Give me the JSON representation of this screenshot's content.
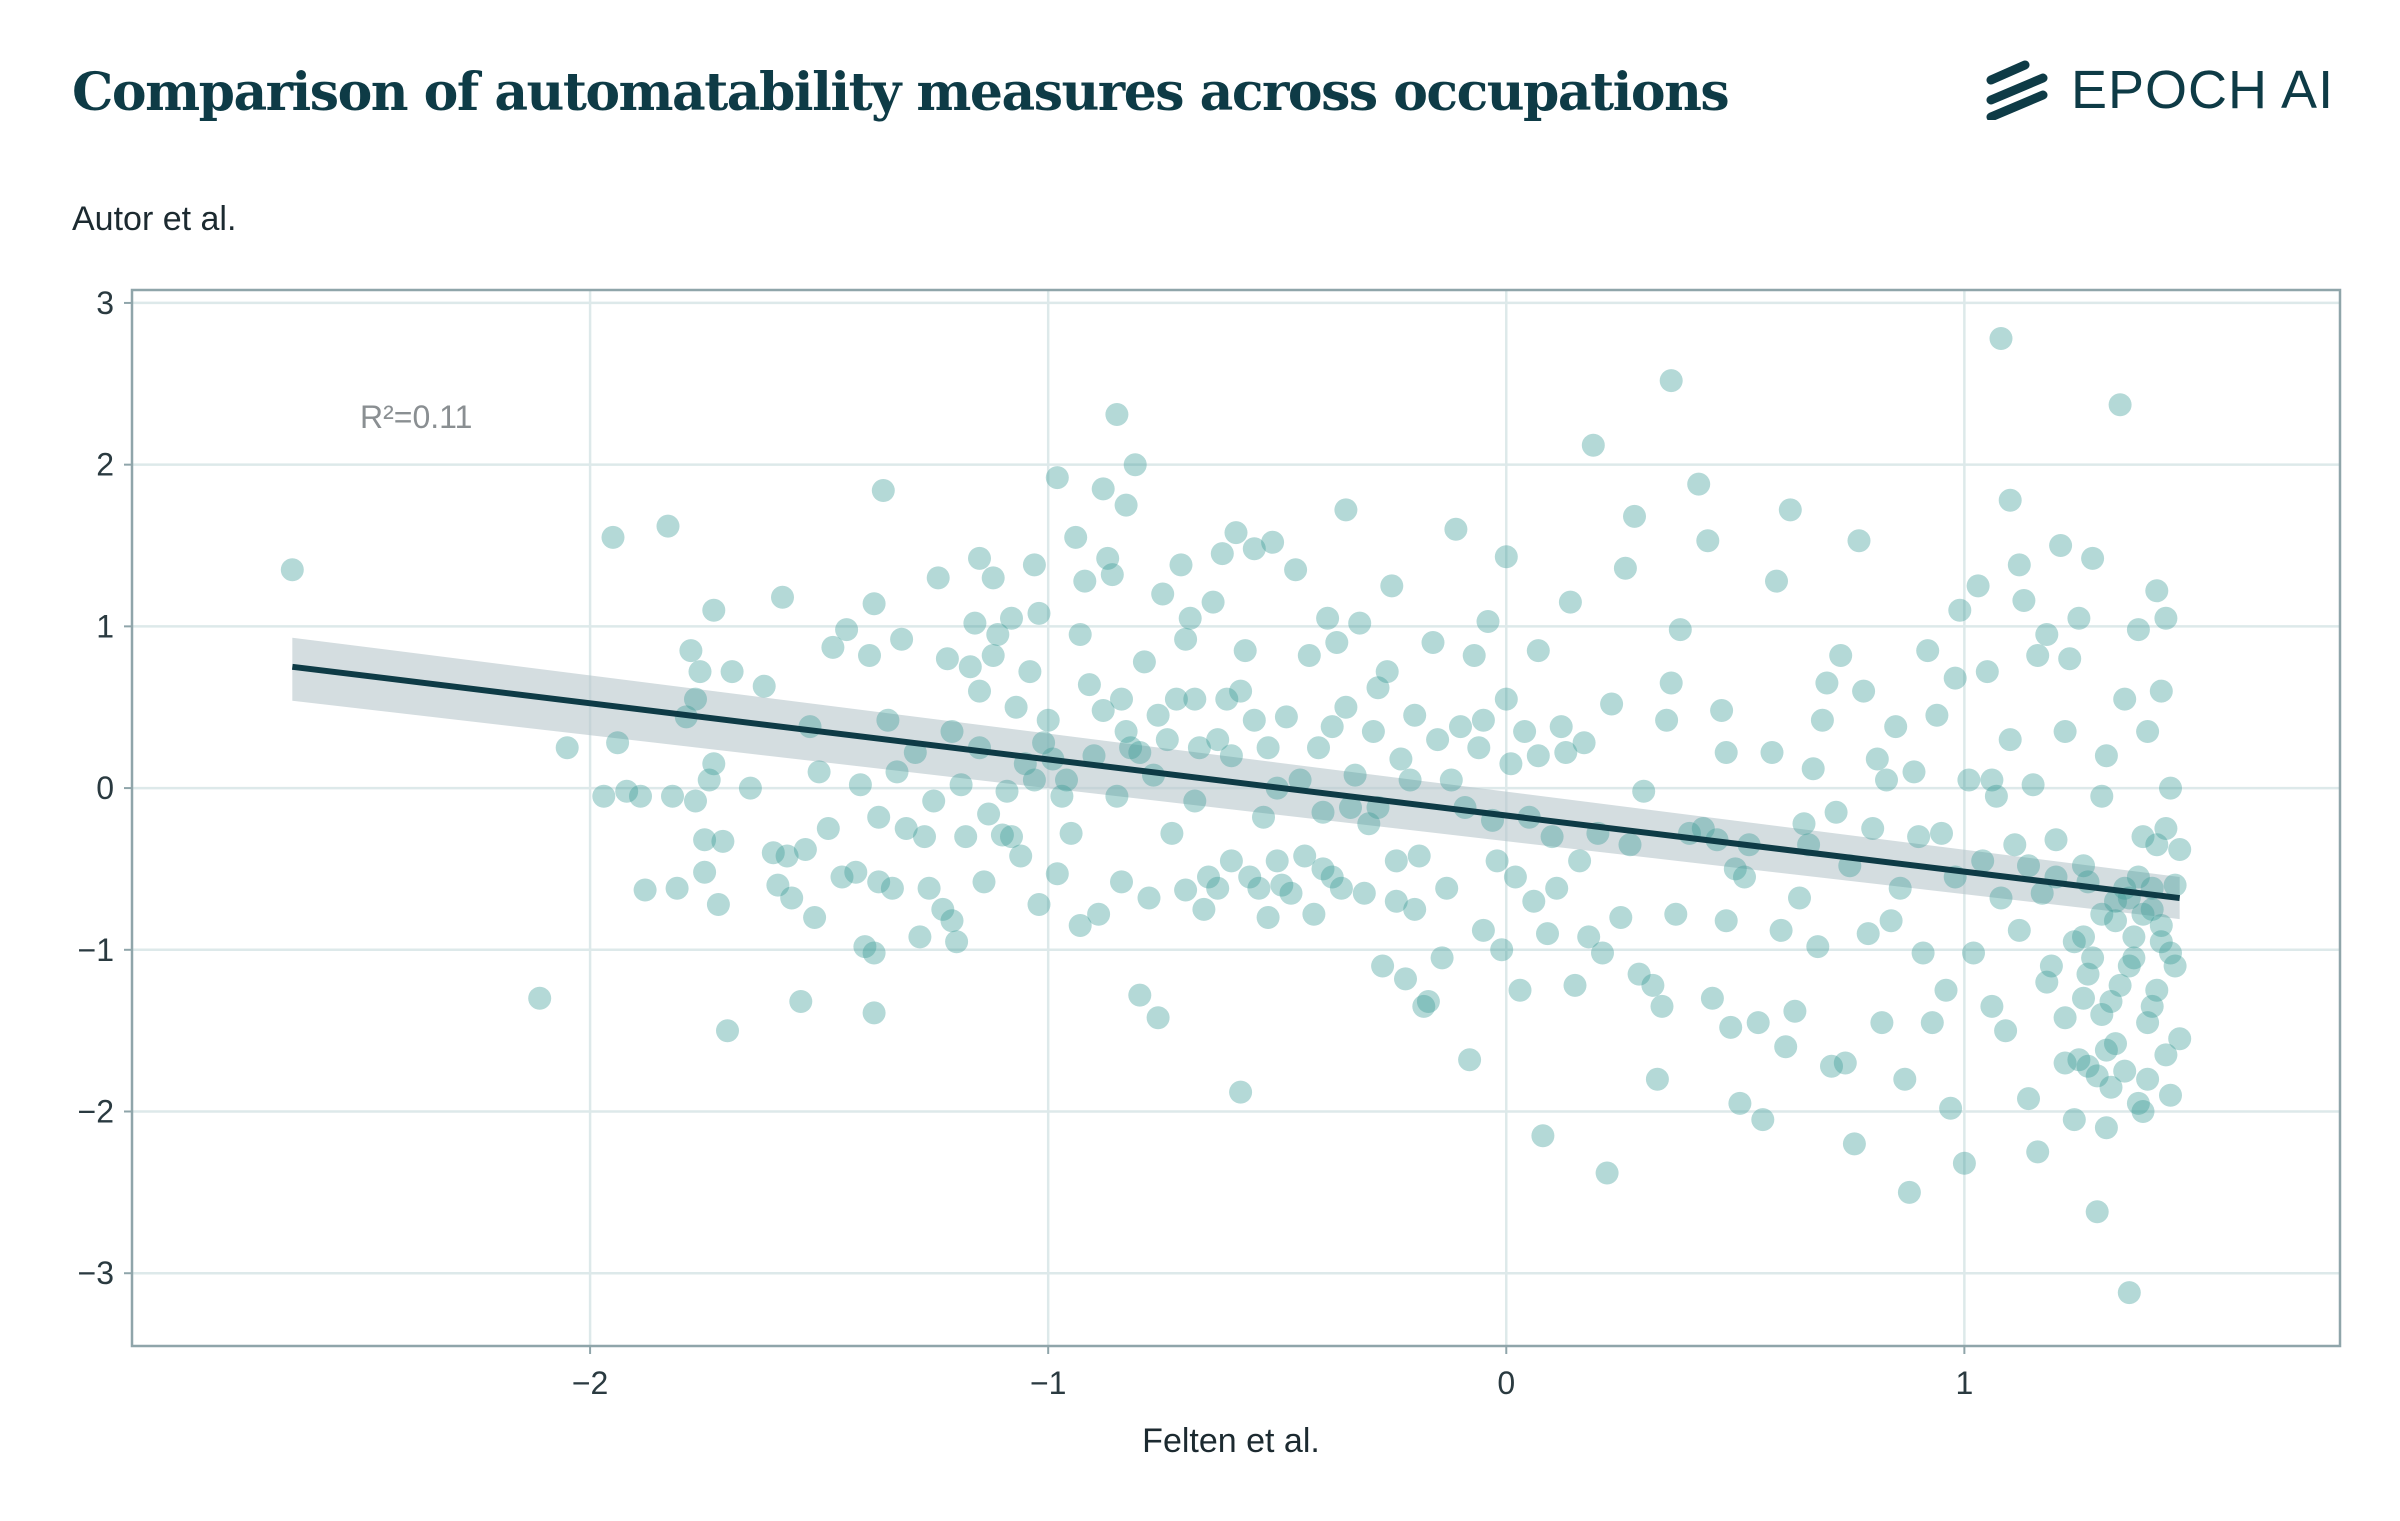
{
  "title": "Comparison of automatability measures across occupations",
  "brand": {
    "name": "EPOCH AI",
    "color": "#0e3b46"
  },
  "chart_data": {
    "type": "scatter",
    "xlabel": "Felten et al.",
    "ylabel": "Autor et al.",
    "annotation": "R²=0.11",
    "xlim": [
      -3.0,
      1.82
    ],
    "ylim": [
      -3.45,
      3.08
    ],
    "xticks": [
      -2,
      -1,
      0,
      1
    ],
    "yticks": [
      -3,
      -2,
      -1,
      0,
      1,
      2,
      3
    ],
    "grid": true,
    "colors": {
      "points": "#3a9a96",
      "fit_line": "#0e3b46",
      "band": "#b7c7cc",
      "grid": "#dde9ea",
      "frame": "#8fa5aa"
    },
    "fit": {
      "x": [
        -2.65,
        1.47
      ],
      "y": [
        0.75,
        -0.68
      ],
      "band_lower": [
        0.54,
        -0.81
      ],
      "band_upper": [
        0.93,
        -0.55
      ]
    },
    "points": [
      [
        -2.65,
        1.35
      ],
      [
        -2.11,
        -1.3
      ],
      [
        -2.05,
        0.25
      ],
      [
        -1.97,
        -0.05
      ],
      [
        -1.95,
        1.55
      ],
      [
        -1.94,
        0.28
      ],
      [
        -1.92,
        -0.02
      ],
      [
        -1.89,
        -0.05
      ],
      [
        -1.88,
        -0.63
      ],
      [
        -1.83,
        1.62
      ],
      [
        -1.82,
        -0.05
      ],
      [
        -1.81,
        -0.62
      ],
      [
        -1.79,
        0.44
      ],
      [
        -1.78,
        0.85
      ],
      [
        -1.77,
        -0.08
      ],
      [
        -1.77,
        0.55
      ],
      [
        -1.76,
        0.72
      ],
      [
        -1.75,
        -0.32
      ],
      [
        -1.75,
        -0.52
      ],
      [
        -1.74,
        0.05
      ],
      [
        -1.73,
        0.15
      ],
      [
        -1.73,
        1.1
      ],
      [
        -1.72,
        -0.72
      ],
      [
        -1.71,
        -0.33
      ],
      [
        -1.7,
        -1.5
      ],
      [
        -1.69,
        0.72
      ],
      [
        -1.65,
        0.0
      ],
      [
        -1.62,
        0.63
      ],
      [
        -1.6,
        -0.4
      ],
      [
        -1.59,
        -0.6
      ],
      [
        -1.58,
        1.18
      ],
      [
        -1.57,
        -0.42
      ],
      [
        -1.56,
        -0.68
      ],
      [
        -1.54,
        -1.32
      ],
      [
        -1.53,
        -0.38
      ],
      [
        -1.52,
        0.38
      ],
      [
        -1.51,
        -0.8
      ],
      [
        -1.5,
        0.1
      ],
      [
        -1.48,
        -0.25
      ],
      [
        -1.47,
        0.87
      ],
      [
        -1.45,
        -0.55
      ],
      [
        -1.44,
        0.98
      ],
      [
        -1.42,
        -0.52
      ],
      [
        -1.41,
        0.02
      ],
      [
        -1.4,
        -0.98
      ],
      [
        -1.39,
        0.82
      ],
      [
        -1.38,
        1.14
      ],
      [
        -1.38,
        -1.02
      ],
      [
        -1.38,
        -1.39
      ],
      [
        -1.37,
        -0.58
      ],
      [
        -1.37,
        -0.18
      ],
      [
        -1.36,
        1.84
      ],
      [
        -1.35,
        0.42
      ],
      [
        -1.34,
        -0.62
      ],
      [
        -1.33,
        0.1
      ],
      [
        -1.32,
        0.92
      ],
      [
        -1.31,
        -0.25
      ],
      [
        -1.29,
        0.22
      ],
      [
        -1.28,
        -0.92
      ],
      [
        -1.27,
        -0.3
      ],
      [
        -1.26,
        -0.62
      ],
      [
        -1.25,
        -0.08
      ],
      [
        -1.24,
        1.3
      ],
      [
        -1.23,
        -0.75
      ],
      [
        -1.22,
        0.8
      ],
      [
        -1.21,
        0.35
      ],
      [
        -1.21,
        -0.82
      ],
      [
        -1.2,
        -0.95
      ],
      [
        -1.19,
        0.02
      ],
      [
        -1.18,
        -0.3
      ],
      [
        -1.17,
        0.75
      ],
      [
        -1.16,
        1.02
      ],
      [
        -1.15,
        1.42
      ],
      [
        -1.15,
        0.6
      ],
      [
        -1.15,
        0.25
      ],
      [
        -1.14,
        -0.58
      ],
      [
        -1.13,
        -0.16
      ],
      [
        -1.12,
        0.82
      ],
      [
        -1.12,
        1.3
      ],
      [
        -1.11,
        0.95
      ],
      [
        -1.1,
        -0.29
      ],
      [
        -1.09,
        -0.02
      ],
      [
        -1.08,
        -0.3
      ],
      [
        -1.08,
        1.05
      ],
      [
        -1.07,
        0.5
      ],
      [
        -1.06,
        -0.42
      ],
      [
        -1.05,
        0.15
      ],
      [
        -1.04,
        0.72
      ],
      [
        -1.03,
        1.38
      ],
      [
        -1.03,
        0.05
      ],
      [
        -1.02,
        1.08
      ],
      [
        -1.02,
        -0.72
      ],
      [
        -1.01,
        0.28
      ],
      [
        -1.0,
        0.42
      ],
      [
        -0.99,
        0.18
      ],
      [
        -0.98,
        1.92
      ],
      [
        -0.98,
        -0.53
      ],
      [
        -0.97,
        -0.05
      ],
      [
        -0.96,
        0.05
      ],
      [
        -0.95,
        -0.28
      ],
      [
        -0.94,
        1.55
      ],
      [
        -0.93,
        0.95
      ],
      [
        -0.93,
        -0.85
      ],
      [
        -0.92,
        1.28
      ],
      [
        -0.91,
        0.64
      ],
      [
        -0.9,
        0.2
      ],
      [
        -0.89,
        -0.78
      ],
      [
        -0.88,
        1.85
      ],
      [
        -0.88,
        0.48
      ],
      [
        -0.87,
        1.42
      ],
      [
        -0.86,
        1.32
      ],
      [
        -0.85,
        2.31
      ],
      [
        -0.85,
        -0.05
      ],
      [
        -0.84,
        0.55
      ],
      [
        -0.84,
        -0.58
      ],
      [
        -0.83,
        0.35
      ],
      [
        -0.83,
        1.75
      ],
      [
        -0.82,
        0.25
      ],
      [
        -0.81,
        2.0
      ],
      [
        -0.8,
        0.22
      ],
      [
        -0.8,
        -1.28
      ],
      [
        -0.79,
        0.78
      ],
      [
        -0.78,
        -0.68
      ],
      [
        -0.77,
        0.08
      ],
      [
        -0.76,
        0.45
      ],
      [
        -0.76,
        -1.42
      ],
      [
        -0.75,
        1.2
      ],
      [
        -0.74,
        0.3
      ],
      [
        -0.73,
        -0.28
      ],
      [
        -0.72,
        0.55
      ],
      [
        -0.71,
        1.38
      ],
      [
        -0.7,
        -0.63
      ],
      [
        -0.7,
        0.92
      ],
      [
        -0.69,
        1.05
      ],
      [
        -0.68,
        -0.08
      ],
      [
        -0.68,
        0.55
      ],
      [
        -0.67,
        0.25
      ],
      [
        -0.66,
        -0.75
      ],
      [
        -0.65,
        -0.55
      ],
      [
        -0.64,
        1.15
      ],
      [
        -0.63,
        0.3
      ],
      [
        -0.63,
        -0.62
      ],
      [
        -0.62,
        1.45
      ],
      [
        -0.61,
        0.55
      ],
      [
        -0.6,
        0.2
      ],
      [
        -0.6,
        -0.45
      ],
      [
        -0.59,
        1.58
      ],
      [
        -0.58,
        0.6
      ],
      [
        -0.58,
        -1.88
      ],
      [
        -0.57,
        0.85
      ],
      [
        -0.56,
        -0.55
      ],
      [
        -0.55,
        1.48
      ],
      [
        -0.55,
        0.42
      ],
      [
        -0.54,
        -0.62
      ],
      [
        -0.53,
        -0.18
      ],
      [
        -0.52,
        0.25
      ],
      [
        -0.52,
        -0.8
      ],
      [
        -0.51,
        1.52
      ],
      [
        -0.5,
        -0.45
      ],
      [
        -0.5,
        0.0
      ],
      [
        -0.49,
        -0.6
      ],
      [
        -0.48,
        0.44
      ],
      [
        -0.47,
        -0.65
      ],
      [
        -0.46,
        1.35
      ],
      [
        -0.45,
        0.05
      ],
      [
        -0.44,
        -0.42
      ],
      [
        -0.43,
        0.82
      ],
      [
        -0.42,
        -0.78
      ],
      [
        -0.41,
        0.25
      ],
      [
        -0.4,
        -0.15
      ],
      [
        -0.4,
        -0.5
      ],
      [
        -0.39,
        1.05
      ],
      [
        -0.38,
        0.38
      ],
      [
        -0.38,
        -0.55
      ],
      [
        -0.37,
        0.9
      ],
      [
        -0.36,
        -0.62
      ],
      [
        -0.35,
        1.72
      ],
      [
        -0.35,
        0.5
      ],
      [
        -0.34,
        -0.12
      ],
      [
        -0.33,
        0.08
      ],
      [
        -0.32,
        1.02
      ],
      [
        -0.31,
        -0.65
      ],
      [
        -0.3,
        -0.22
      ],
      [
        -0.29,
        0.35
      ],
      [
        -0.28,
        -0.12
      ],
      [
        -0.28,
        0.62
      ],
      [
        -0.27,
        -1.1
      ],
      [
        -0.26,
        0.72
      ],
      [
        -0.25,
        1.25
      ],
      [
        -0.24,
        -0.45
      ],
      [
        -0.24,
        -0.7
      ],
      [
        -0.23,
        0.18
      ],
      [
        -0.22,
        -1.18
      ],
      [
        -0.21,
        0.05
      ],
      [
        -0.2,
        -0.75
      ],
      [
        -0.2,
        0.45
      ],
      [
        -0.19,
        -0.42
      ],
      [
        -0.18,
        -1.35
      ],
      [
        -0.17,
        -1.32
      ],
      [
        -0.16,
        0.9
      ],
      [
        -0.15,
        0.3
      ],
      [
        -0.14,
        -1.05
      ],
      [
        -0.13,
        -0.62
      ],
      [
        -0.12,
        0.05
      ],
      [
        -0.11,
        1.6
      ],
      [
        -0.1,
        0.38
      ],
      [
        -0.09,
        -0.12
      ],
      [
        -0.08,
        -1.68
      ],
      [
        -0.07,
        0.82
      ],
      [
        -0.06,
        0.25
      ],
      [
        -0.05,
        0.42
      ],
      [
        -0.05,
        -0.88
      ],
      [
        -0.04,
        1.03
      ],
      [
        -0.03,
        -0.2
      ],
      [
        -0.02,
        -0.45
      ],
      [
        -0.01,
        -1.0
      ],
      [
        0.0,
        1.43
      ],
      [
        0.0,
        0.55
      ],
      [
        0.01,
        0.15
      ],
      [
        0.02,
        -0.55
      ],
      [
        0.03,
        -1.25
      ],
      [
        0.04,
        0.35
      ],
      [
        0.05,
        -0.18
      ],
      [
        0.06,
        -0.7
      ],
      [
        0.07,
        0.2
      ],
      [
        0.07,
        0.85
      ],
      [
        0.08,
        -2.15
      ],
      [
        0.09,
        -0.9
      ],
      [
        0.1,
        -0.3
      ],
      [
        0.11,
        -0.62
      ],
      [
        0.12,
        0.38
      ],
      [
        0.13,
        0.22
      ],
      [
        0.14,
        1.15
      ],
      [
        0.15,
        -1.22
      ],
      [
        0.16,
        -0.45
      ],
      [
        0.17,
        0.28
      ],
      [
        0.18,
        -0.92
      ],
      [
        0.19,
        2.12
      ],
      [
        0.2,
        -0.28
      ],
      [
        0.21,
        -1.02
      ],
      [
        0.22,
        -2.38
      ],
      [
        0.23,
        0.52
      ],
      [
        0.25,
        -0.8
      ],
      [
        0.26,
        1.36
      ],
      [
        0.27,
        -0.35
      ],
      [
        0.28,
        1.68
      ],
      [
        0.29,
        -1.15
      ],
      [
        0.3,
        -0.02
      ],
      [
        0.32,
        -1.22
      ],
      [
        0.33,
        -1.8
      ],
      [
        0.34,
        -1.35
      ],
      [
        0.35,
        0.42
      ],
      [
        0.36,
        0.65
      ],
      [
        0.36,
        2.52
      ],
      [
        0.37,
        -0.78
      ],
      [
        0.38,
        0.98
      ],
      [
        0.4,
        -0.28
      ],
      [
        0.42,
        1.88
      ],
      [
        0.43,
        -0.25
      ],
      [
        0.44,
        1.53
      ],
      [
        0.45,
        -1.3
      ],
      [
        0.46,
        -0.32
      ],
      [
        0.47,
        0.48
      ],
      [
        0.48,
        -0.82
      ],
      [
        0.48,
        0.22
      ],
      [
        0.49,
        -1.48
      ],
      [
        0.5,
        -0.5
      ],
      [
        0.51,
        -1.95
      ],
      [
        0.52,
        -0.55
      ],
      [
        0.53,
        -0.35
      ],
      [
        0.55,
        -1.45
      ],
      [
        0.56,
        -2.05
      ],
      [
        0.58,
        0.22
      ],
      [
        0.59,
        1.28
      ],
      [
        0.6,
        -0.88
      ],
      [
        0.61,
        -1.6
      ],
      [
        0.62,
        1.72
      ],
      [
        0.63,
        -1.38
      ],
      [
        0.64,
        -0.68
      ],
      [
        0.65,
        -0.22
      ],
      [
        0.66,
        -0.35
      ],
      [
        0.67,
        0.12
      ],
      [
        0.68,
        -0.98
      ],
      [
        0.69,
        0.42
      ],
      [
        0.7,
        0.65
      ],
      [
        0.71,
        -1.72
      ],
      [
        0.72,
        -0.15
      ],
      [
        0.73,
        0.82
      ],
      [
        0.74,
        -1.7
      ],
      [
        0.75,
        -0.48
      ],
      [
        0.76,
        -2.2
      ],
      [
        0.77,
        1.53
      ],
      [
        0.78,
        0.6
      ],
      [
        0.79,
        -0.9
      ],
      [
        0.8,
        -0.25
      ],
      [
        0.81,
        0.18
      ],
      [
        0.82,
        -1.45
      ],
      [
        0.83,
        0.05
      ],
      [
        0.84,
        -0.82
      ],
      [
        0.85,
        0.38
      ],
      [
        0.86,
        -0.62
      ],
      [
        0.87,
        -1.8
      ],
      [
        0.88,
        -2.5
      ],
      [
        0.89,
        0.1
      ],
      [
        0.9,
        -0.3
      ],
      [
        0.91,
        -1.02
      ],
      [
        0.92,
        0.85
      ],
      [
        0.93,
        -1.45
      ],
      [
        0.94,
        0.45
      ],
      [
        0.95,
        -0.28
      ],
      [
        0.96,
        -1.25
      ],
      [
        0.97,
        -1.98
      ],
      [
        0.98,
        0.68
      ],
      [
        0.98,
        -0.55
      ],
      [
        0.99,
        1.1
      ],
      [
        1.0,
        -2.32
      ],
      [
        1.01,
        0.05
      ],
      [
        1.02,
        -1.02
      ],
      [
        1.03,
        1.25
      ],
      [
        1.04,
        -0.45
      ],
      [
        1.05,
        0.72
      ],
      [
        1.06,
        -1.35
      ],
      [
        1.07,
        -0.05
      ],
      [
        1.08,
        2.78
      ],
      [
        1.09,
        -1.5
      ],
      [
        1.1,
        1.78
      ],
      [
        1.11,
        -0.35
      ],
      [
        1.12,
        -0.88
      ],
      [
        1.13,
        1.16
      ],
      [
        1.14,
        -1.92
      ],
      [
        1.15,
        0.02
      ],
      [
        1.16,
        -2.25
      ],
      [
        1.17,
        -0.65
      ],
      [
        1.18,
        0.95
      ],
      [
        1.19,
        -1.1
      ],
      [
        1.2,
        -0.32
      ],
      [
        1.21,
        1.5
      ],
      [
        1.22,
        -1.7
      ],
      [
        1.23,
        0.8
      ],
      [
        1.24,
        -2.05
      ],
      [
        1.25,
        1.05
      ],
      [
        1.26,
        -0.48
      ],
      [
        1.27,
        -1.15
      ],
      [
        1.28,
        1.42
      ],
      [
        1.29,
        -2.62
      ],
      [
        1.3,
        -0.05
      ],
      [
        1.31,
        0.2
      ],
      [
        1.32,
        -1.32
      ],
      [
        1.33,
        -0.82
      ],
      [
        1.34,
        2.37
      ],
      [
        1.35,
        0.55
      ],
      [
        1.35,
        -1.75
      ],
      [
        1.36,
        -3.12
      ],
      [
        1.37,
        -1.05
      ],
      [
        1.38,
        0.98
      ],
      [
        1.38,
        -0.55
      ],
      [
        1.39,
        -2.0
      ],
      [
        1.4,
        0.35
      ],
      [
        1.4,
        -1.45
      ],
      [
        1.41,
        -0.75
      ],
      [
        1.42,
        1.22
      ],
      [
        1.42,
        -1.25
      ],
      [
        1.43,
        0.6
      ],
      [
        1.43,
        -0.95
      ],
      [
        1.44,
        -1.65
      ],
      [
        1.44,
        -0.25
      ],
      [
        1.45,
        0.0
      ],
      [
        1.45,
        -1.9
      ],
      [
        1.46,
        -0.6
      ],
      [
        1.46,
        -1.1
      ],
      [
        1.47,
        -0.38
      ],
      [
        1.47,
        -1.55
      ],
      [
        1.25,
        -1.68
      ],
      [
        1.27,
        -1.72
      ],
      [
        1.29,
        -1.78
      ],
      [
        1.31,
        -1.62
      ],
      [
        1.33,
        -0.7
      ],
      [
        1.35,
        -0.62
      ],
      [
        1.37,
        -0.92
      ],
      [
        1.39,
        -0.78
      ],
      [
        1.41,
        -1.35
      ],
      [
        1.43,
        -0.85
      ],
      [
        1.26,
        -0.92
      ],
      [
        1.28,
        -1.05
      ],
      [
        1.3,
        -0.78
      ],
      [
        1.32,
        -1.85
      ],
      [
        1.34,
        -1.22
      ],
      [
        1.36,
        -0.68
      ],
      [
        1.38,
        -1.95
      ],
      [
        1.4,
        -1.8
      ],
      [
        1.42,
        -0.35
      ],
      [
        1.44,
        1.05
      ],
      [
        1.2,
        -0.55
      ],
      [
        1.22,
        0.35
      ],
      [
        1.24,
        -0.95
      ],
      [
        1.18,
        -1.2
      ],
      [
        1.16,
        0.82
      ],
      [
        1.14,
        -0.48
      ],
      [
        1.12,
        1.38
      ],
      [
        1.1,
        0.3
      ],
      [
        1.08,
        -0.68
      ],
      [
        1.06,
        0.05
      ],
      [
        1.22,
        -1.42
      ],
      [
        1.3,
        -1.4
      ],
      [
        1.36,
        -1.1
      ],
      [
        1.33,
        -1.58
      ],
      [
        1.27,
        -0.58
      ],
      [
        1.31,
        -2.1
      ],
      [
        1.26,
        -1.3
      ],
      [
        1.39,
        -0.3
      ],
      [
        1.41,
        -0.62
      ],
      [
        1.45,
        -1.02
      ]
    ]
  }
}
